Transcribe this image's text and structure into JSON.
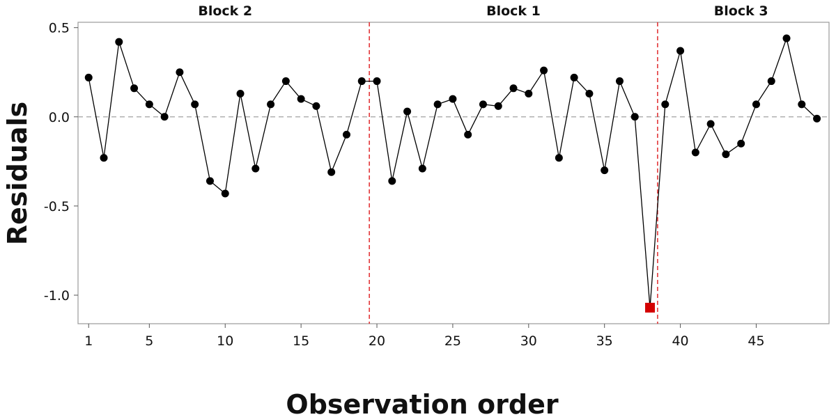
{
  "chart_data": {
    "type": "line",
    "title": "",
    "xlabel": "Observation order",
    "ylabel": "Residuals",
    "xlim": [
      0.3,
      49.8
    ],
    "ylim": [
      -1.16,
      0.53
    ],
    "x_ticks": [
      1,
      5,
      10,
      15,
      20,
      25,
      30,
      35,
      40,
      45
    ],
    "y_ticks": [
      {
        "value": 0.5,
        "label": "0.5"
      },
      {
        "value": 0.0,
        "label": "0.0"
      },
      {
        "value": -0.5,
        "label": "-0.5"
      },
      {
        "value": -1.0,
        "label": "-1.0"
      }
    ],
    "reference_line": {
      "y": 0,
      "style": "dashed",
      "color": "#aaaaaa"
    },
    "block_dividers": [
      19.5,
      38.5
    ],
    "block_divider_color": "#e0282a",
    "blocks": [
      {
        "label": "Block 2",
        "center": 10
      },
      {
        "label": "Block 1",
        "center": 29
      },
      {
        "label": "Block 3",
        "center": 44
      }
    ],
    "series_color": "#000000",
    "highlight_color": "#d40000",
    "x": [
      1,
      2,
      3,
      4,
      5,
      6,
      7,
      8,
      9,
      10,
      11,
      12,
      13,
      14,
      15,
      16,
      17,
      18,
      19,
      20,
      21,
      22,
      23,
      24,
      25,
      26,
      27,
      28,
      29,
      30,
      31,
      32,
      33,
      34,
      35,
      36,
      37,
      38,
      39,
      40,
      41,
      42,
      43,
      44,
      45,
      46,
      47,
      48,
      49
    ],
    "y": [
      0.22,
      -0.23,
      0.42,
      0.16,
      0.07,
      0.0,
      0.25,
      0.07,
      -0.36,
      -0.43,
      0.13,
      -0.29,
      0.07,
      0.2,
      0.1,
      0.06,
      -0.31,
      -0.1,
      0.2,
      0.2,
      -0.36,
      0.03,
      -0.29,
      0.07,
      0.1,
      -0.1,
      0.07,
      0.06,
      0.16,
      0.13,
      0.26,
      -0.23,
      0.22,
      0.13,
      -0.3,
      0.2,
      0.0,
      -1.07,
      0.07,
      0.37,
      -0.2,
      -0.04,
      -0.21,
      -0.15,
      0.07,
      0.2,
      0.44,
      0.07,
      -0.01
    ],
    "highlight_points": [
      38
    ]
  }
}
